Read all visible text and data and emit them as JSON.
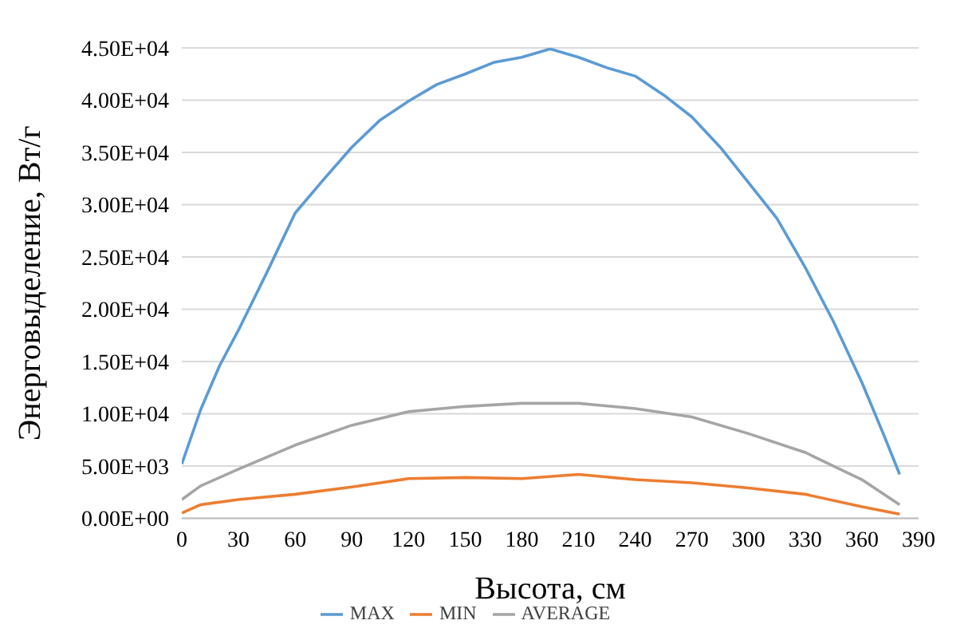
{
  "chart_data": {
    "type": "line",
    "xlabel": "Высота, см",
    "ylabel": "Энерговыделение, Вт/г",
    "xlim": [
      0,
      390
    ],
    "xticks": [
      0,
      30,
      60,
      90,
      120,
      150,
      180,
      210,
      240,
      270,
      300,
      330,
      360,
      390
    ],
    "ylim": [
      0,
      45000
    ],
    "yticks": [
      {
        "value": 0,
        "label": "0.00E+00"
      },
      {
        "value": 5000,
        "label": "5.00E+03"
      },
      {
        "value": 10000,
        "label": "1.00E+04"
      },
      {
        "value": 15000,
        "label": "1.50E+04"
      },
      {
        "value": 20000,
        "label": "2.00E+04"
      },
      {
        "value": 25000,
        "label": "2.50E+04"
      },
      {
        "value": 30000,
        "label": "3.00E+04"
      },
      {
        "value": 35000,
        "label": "3.50E+04"
      },
      {
        "value": 40000,
        "label": "4.00E+04"
      },
      {
        "value": 45000,
        "label": "4.50E+04"
      }
    ],
    "grid": "y",
    "legend": "bottom",
    "marker": "none",
    "line_style": "solid",
    "series": [
      {
        "name": "MAX",
        "color": "#5b9bd5",
        "x": [
          0,
          10,
          20,
          30,
          45,
          60,
          75,
          90,
          105,
          120,
          135,
          150,
          165,
          180,
          195,
          210,
          225,
          240,
          255,
          270,
          285,
          300,
          315,
          330,
          345,
          360,
          372,
          380
        ],
        "values": [
          5200,
          10400,
          14600,
          18000,
          23500,
          29200,
          32400,
          35500,
          38100,
          39900,
          41500,
          42500,
          43600,
          44100,
          44900,
          44100,
          43100,
          42300,
          40500,
          38400,
          35500,
          32100,
          28700,
          24000,
          18800,
          13000,
          7800,
          4200
        ]
      },
      {
        "name": "MIN",
        "color": "#ed7d31",
        "x": [
          0,
          10,
          30,
          60,
          90,
          120,
          150,
          180,
          210,
          240,
          270,
          300,
          330,
          360,
          380
        ],
        "values": [
          500,
          1300,
          1800,
          2300,
          3000,
          3800,
          3900,
          3800,
          4200,
          3700,
          3400,
          2900,
          2300,
          1100,
          400
        ]
      },
      {
        "name": "AVERAGE",
        "color": "#a5a5a5",
        "x": [
          0,
          10,
          30,
          60,
          90,
          120,
          150,
          180,
          210,
          240,
          270,
          300,
          330,
          360,
          380
        ],
        "values": [
          1800,
          3100,
          4700,
          7000,
          8900,
          10200,
          10700,
          11000,
          11000,
          10500,
          9700,
          8100,
          6300,
          3700,
          1300
        ]
      }
    ]
  }
}
